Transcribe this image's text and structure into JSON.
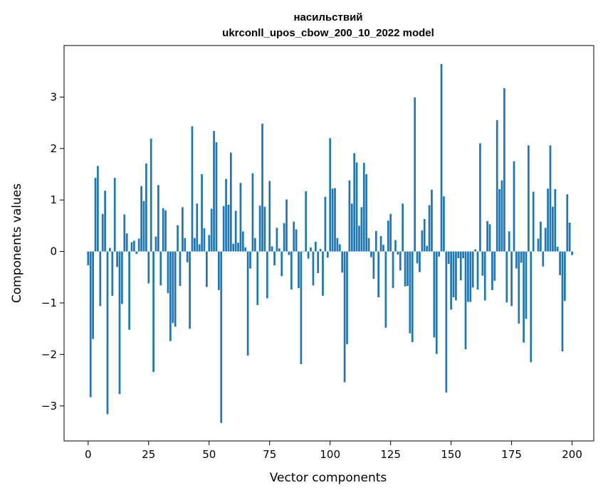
{
  "chart_data": {
    "type": "bar",
    "title": "насильствий",
    "subtitle": "ukrconll_upos_cbow_200_10_2022 model",
    "xlabel": "Vector components",
    "ylabel": "Components values",
    "xlim": [
      -9.95,
      208.95
    ],
    "ylim": [
      -3.68,
      4.0
    ],
    "xticks": [
      0,
      25,
      50,
      75,
      100,
      125,
      150,
      175,
      200
    ],
    "yticks": [
      -3,
      -2,
      -1,
      0,
      1,
      2,
      3
    ],
    "grid": false,
    "color": "#1f77b4",
    "values": [
      -0.27,
      -2.83,
      -1.7,
      1.43,
      1.66,
      -1.06,
      0.73,
      1.18,
      -3.16,
      0.07,
      -0.86,
      1.43,
      -0.3,
      -2.77,
      -1.02,
      0.72,
      0.35,
      -1.52,
      0.18,
      0.21,
      -0.05,
      0.25,
      1.27,
      0.98,
      1.71,
      -0.62,
      2.19,
      -2.34,
      0.29,
      1.29,
      -0.66,
      0.84,
      0.8,
      -0.81,
      -1.74,
      -1.39,
      -1.46,
      0.51,
      -0.67,
      0.86,
      0.26,
      -0.21,
      -1.5,
      2.43,
      0.26,
      0.93,
      0.14,
      1.5,
      0.45,
      -0.69,
      0.32,
      0.83,
      2.34,
      2.12,
      -0.75,
      -3.33,
      0.88,
      1.41,
      0.91,
      1.92,
      0.15,
      0.79,
      0.17,
      1.33,
      0.39,
      0.08,
      -2.02,
      -0.33,
      1.52,
      0.26,
      -1.04,
      0.89,
      2.48,
      0.87,
      -0.91,
      1.37,
      0.1,
      -0.27,
      0.46,
      0.06,
      -0.48,
      0.55,
      1.01,
      -0.07,
      -0.74,
      0.58,
      0.43,
      -0.71,
      -2.19,
      0.01,
      1.17,
      -0.14,
      0.08,
      -0.66,
      0.19,
      -0.42,
      0.05,
      -0.86,
      1.06,
      -0.12,
      2.2,
      1.22,
      1.23,
      0.26,
      0.14,
      -0.41,
      -2.54,
      -1.8,
      1.38,
      0.93,
      1.91,
      1.73,
      0.5,
      0.86,
      1.72,
      1.5,
      0.26,
      -0.11,
      -0.53,
      0.4,
      -0.89,
      0.3,
      0.13,
      -1.48,
      0.6,
      0.73,
      -0.71,
      0.22,
      -0.06,
      -0.37,
      0.93,
      -0.68,
      -0.67,
      -1.59,
      -1.76,
      2.99,
      -0.23,
      -0.4,
      0.41,
      0.63,
      0.11,
      0.9,
      1.2,
      -1.67,
      -1.99,
      -0.1,
      3.64,
      1.07,
      -2.74,
      -0.24,
      -1.13,
      -0.89,
      -0.95,
      -0.13,
      -0.56,
      -0.13,
      -1.9,
      -0.98,
      -0.98,
      -0.7,
      0.04,
      -0.74,
      2.1,
      -0.47,
      -0.95,
      0.59,
      0.53,
      -0.75,
      -0.57,
      2.55,
      1.21,
      1.38,
      3.17,
      -0.99,
      0.39,
      -1.06,
      1.75,
      -0.33,
      -1.4,
      -0.22,
      -1.77,
      -1.31,
      2.06,
      -2.15,
      1.16,
      0.0,
      0.25,
      0.58,
      -0.29,
      0.46,
      1.22,
      2.06,
      0.87,
      1.21,
      0.09,
      -0.46,
      -1.94,
      -0.96,
      1.11,
      0.56,
      -0.07
    ]
  }
}
